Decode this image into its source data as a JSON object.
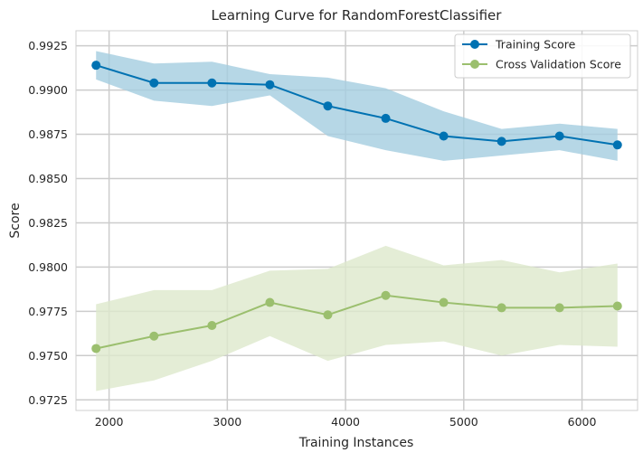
{
  "chart_data": {
    "type": "line",
    "title": "Learning Curve for RandomForestClassifier",
    "xlabel": "Training Instances",
    "ylabel": "Score",
    "xlim": [
      1720,
      6470
    ],
    "ylim": [
      0.9719,
      0.99335
    ],
    "grid": true,
    "legend_position": "top-right",
    "x_ticks": [
      2000,
      3000,
      4000,
      5000,
      6000
    ],
    "x_tick_labels": [
      "2000",
      "3000",
      "4000",
      "5000",
      "6000"
    ],
    "y_ticks": [
      0.9725,
      0.975,
      0.9775,
      0.98,
      0.9825,
      0.985,
      0.9875,
      0.99,
      0.9925
    ],
    "y_tick_labels": [
      "0.9725",
      "0.9750",
      "0.9775",
      "0.9800",
      "0.9825",
      "0.9850",
      "0.9875",
      "0.9900",
      "0.9925"
    ],
    "x": [
      1890,
      2380,
      2870,
      3360,
      3850,
      4340,
      4830,
      5320,
      5810,
      6300
    ],
    "series": [
      {
        "name": "Training Score",
        "color": "#0072b2",
        "band_color": "#a4cde0",
        "values": [
          0.9914,
          0.9904,
          0.9904,
          0.9903,
          0.9891,
          0.9884,
          0.9874,
          0.9871,
          0.9874,
          0.9869
        ],
        "upper": [
          0.9922,
          0.9915,
          0.9916,
          0.9909,
          0.9907,
          0.9901,
          0.9888,
          0.9878,
          0.9881,
          0.9878
        ],
        "lower": [
          0.9906,
          0.9894,
          0.9891,
          0.9897,
          0.9874,
          0.9866,
          0.986,
          0.9863,
          0.9866,
          0.986
        ]
      },
      {
        "name": "Cross Validation Score",
        "color": "#9bbf6e",
        "band_color": "#dde9cc",
        "values": [
          0.9754,
          0.9761,
          0.9767,
          0.978,
          0.9773,
          0.9784,
          0.978,
          0.9777,
          0.9777,
          0.9778
        ],
        "upper": [
          0.9779,
          0.9787,
          0.9787,
          0.9798,
          0.9799,
          0.9812,
          0.9801,
          0.9804,
          0.9797,
          0.9802
        ],
        "lower": [
          0.973,
          0.9736,
          0.9747,
          0.9761,
          0.9747,
          0.9756,
          0.9758,
          0.975,
          0.9756,
          0.9755
        ]
      }
    ]
  }
}
